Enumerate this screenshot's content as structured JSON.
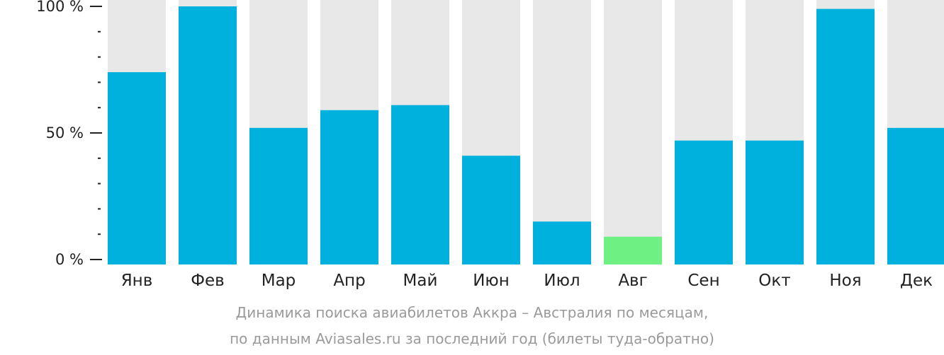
{
  "chart_data": {
    "type": "bar",
    "categories": [
      "Янв",
      "Фев",
      "Мар",
      "Апр",
      "Май",
      "Июн",
      "Июл",
      "Авг",
      "Сен",
      "Окт",
      "Ноя",
      "Дек"
    ],
    "values": [
      74,
      100,
      52,
      59,
      61,
      41,
      15,
      9,
      47,
      47,
      99,
      52
    ],
    "highlight_index": 7,
    "ylim": [
      0,
      100
    ],
    "yticks": [
      {
        "value": 0,
        "label": "0 %"
      },
      {
        "value": 50,
        "label": "50 %"
      },
      {
        "value": 100,
        "label": "100 %"
      }
    ],
    "minor_ticks": [
      10,
      20,
      30,
      40,
      60,
      70,
      80,
      90
    ],
    "colors": {
      "bar": "#00b0dd",
      "highlight": "#6ef083",
      "background_bar": "#e8e8e8",
      "axis": "#222222"
    },
    "caption": [
      "Динамика поиска авиабилетов Аккра – Австралия по месяцам,",
      "по данным Aviasales.ru за последний год (билеты туда-обратно)"
    ]
  }
}
